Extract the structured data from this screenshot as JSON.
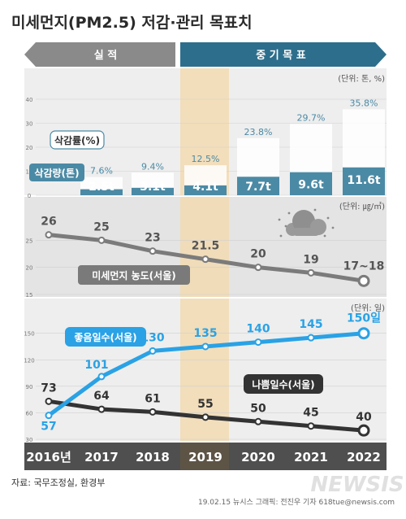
{
  "title": "미세먼지(PM2.5) 저감·관리 목표치",
  "header": {
    "actual_label": "실 적",
    "target_label": "중 기 목 표"
  },
  "units": {
    "reduction": "(단위: 톤, %)",
    "concentration": "(단위: ㎍/㎥)",
    "days": "(단위: 일)"
  },
  "source": "자료: 국무조정실, 환경부",
  "credit": "19.02.15 뉴시스 그래픽: 전진우 기자 618tue@newsis.com",
  "watermark": "NEWSIS",
  "colors": {
    "title": "#2a2a2a",
    "actual_arrow": "#8a8a8a",
    "target_arrow": "#2d6e8c",
    "bar": "#4b8aa5",
    "bar_light": "#dfeef4",
    "highlight": "#f2dbb2",
    "line_gray": "#7b7b7b",
    "line_blue": "#2aa2e5",
    "line_dark": "#333333",
    "year_band": "#4f4f4f"
  },
  "chart_data": [
    {
      "type": "bar",
      "categories": [
        "2016년",
        "2017",
        "2018",
        "2019",
        "2020",
        "2021",
        "2022"
      ],
      "series": [
        {
          "name": "삭감량(톤)",
          "values": [
            null,
            2.5,
            3.1,
            4.1,
            7.7,
            9.6,
            11.6
          ],
          "labels": [
            "",
            "2.5t",
            "3.1t",
            "4.1t",
            "7.7t",
            "9.6t",
            "11.6t"
          ]
        },
        {
          "name": "삭감률(%)",
          "values": [
            null,
            7.6,
            9.4,
            12.5,
            23.8,
            29.7,
            35.8
          ],
          "labels": [
            "",
            "7.6%",
            "9.4%",
            "12.5%",
            "23.8%",
            "29.7%",
            "35.8%"
          ]
        }
      ],
      "yticks": [
        0,
        10,
        20,
        30,
        40
      ],
      "ylim": [
        0,
        40
      ]
    },
    {
      "type": "line",
      "categories": [
        "2016년",
        "2017",
        "2018",
        "2019",
        "2020",
        "2021",
        "2022"
      ],
      "series": [
        {
          "name": "미세먼지 농도(서울)",
          "values": [
            26,
            25,
            23,
            21.5,
            20,
            19,
            17.5
          ],
          "labels": [
            "26",
            "25",
            "23",
            "21.5",
            "20",
            "19",
            "17~18"
          ]
        }
      ],
      "yticks": [
        15,
        20,
        25
      ],
      "ylim": [
        15,
        30
      ]
    },
    {
      "type": "line",
      "categories": [
        "2016년",
        "2017",
        "2018",
        "2019",
        "2020",
        "2021",
        "2022"
      ],
      "series": [
        {
          "name": "좋음일수(서울)",
          "values": [
            57,
            101,
            130,
            135,
            140,
            145,
            150
          ],
          "labels": [
            "57",
            "101",
            "130",
            "135",
            "140",
            "145",
            "150일"
          ]
        },
        {
          "name": "나쁨일수(서울)",
          "values": [
            73,
            64,
            61,
            55,
            50,
            45,
            40
          ],
          "labels": [
            "73",
            "64",
            "61",
            "55",
            "50",
            "45",
            "40"
          ]
        }
      ],
      "yticks": [
        30,
        60,
        90,
        120,
        150
      ],
      "ylim": [
        30,
        170
      ]
    }
  ]
}
